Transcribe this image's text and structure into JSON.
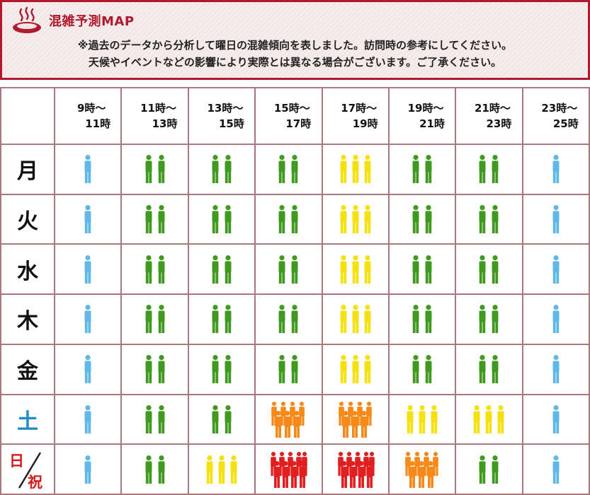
{
  "header": {
    "title": "混雑予測MAP",
    "note_line1": "※過去のデータから分析して曜日の混雑傾向を表しました。訪問時の参考にしてください。",
    "note_line2": "天候やイベントなどの影響により実際とは異なる場合がございます。ご了承ください。"
  },
  "icons": {
    "header": "onsen-hot-spring-icon",
    "crowd": "person-group-icon"
  },
  "time_slots": [
    {
      "start": "9時～",
      "end": "11時"
    },
    {
      "start": "11時～",
      "end": "13時"
    },
    {
      "start": "13時～",
      "end": "15時"
    },
    {
      "start": "15時～",
      "end": "17時"
    },
    {
      "start": "17時～",
      "end": "19時"
    },
    {
      "start": "19時～",
      "end": "21時"
    },
    {
      "start": "21時～",
      "end": "23時"
    },
    {
      "start": "23時～",
      "end": "25時"
    }
  ],
  "days": [
    {
      "label": "月",
      "color": "#111111",
      "levels": [
        1,
        2,
        2,
        2,
        3,
        2,
        2,
        1
      ]
    },
    {
      "label": "火",
      "color": "#111111",
      "levels": [
        1,
        2,
        2,
        2,
        3,
        2,
        2,
        1
      ]
    },
    {
      "label": "水",
      "color": "#111111",
      "levels": [
        1,
        2,
        2,
        2,
        3,
        2,
        2,
        1
      ]
    },
    {
      "label": "木",
      "color": "#111111",
      "levels": [
        1,
        2,
        2,
        2,
        3,
        2,
        2,
        1
      ]
    },
    {
      "label": "金",
      "color": "#111111",
      "levels": [
        1,
        2,
        2,
        2,
        3,
        2,
        2,
        1
      ]
    },
    {
      "label": "土",
      "color": "#1f8bc4",
      "levels": [
        1,
        2,
        2,
        4,
        4,
        3,
        3,
        1
      ]
    },
    {
      "label_sun": "日",
      "label_holiday": "祝",
      "color": "#d31b1b",
      "levels": [
        1,
        2,
        3,
        5,
        5,
        4,
        2,
        1
      ]
    }
  ],
  "level_styles": {
    "1": {
      "color": "#5fb8e6",
      "count": 1
    },
    "2": {
      "color": "#3f9a1f",
      "count": 2
    },
    "3": {
      "color": "#f5e10f",
      "count": 3
    },
    "4": {
      "color": "#f5891a",
      "count": 5
    },
    "5": {
      "color": "#e02020",
      "count": 6
    }
  }
}
